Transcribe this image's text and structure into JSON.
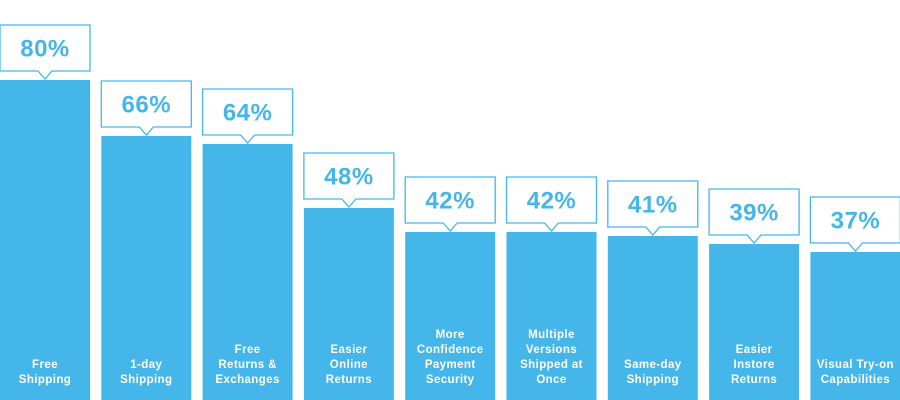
{
  "colors": {
    "bar": "#45b6e9",
    "callout_border": "#45b6e9",
    "callout_fill": "#ffffff",
    "value_text": "#45b6e9",
    "label_text": "#ffffff"
  },
  "chart_data": {
    "type": "bar",
    "categories": [
      "Free Shipping",
      "1-day Shipping",
      "Free Returns & Exchanges",
      "Easier Online Returns",
      "More Confidence Payment Security",
      "Multiple Versions Shipped at Once",
      "Same-day Shipping",
      "Easier Instore Returns",
      "Visual Try-on Capabilities"
    ],
    "category_lines": [
      [
        "Free",
        "Shipping"
      ],
      [
        "1-day",
        "Shipping"
      ],
      [
        "Free",
        "Returns &",
        "Exchanges"
      ],
      [
        "Easier",
        "Online",
        "Returns"
      ],
      [
        "More",
        "Confidence",
        "Payment",
        "Security"
      ],
      [
        "Multiple",
        "Versions",
        "Shipped at",
        "Once"
      ],
      [
        "Same-day",
        "Shipping"
      ],
      [
        "Easier",
        "Instore",
        "Returns"
      ],
      [
        "Visual Try-on",
        "Capabilities"
      ]
    ],
    "values": [
      80,
      66,
      64,
      48,
      42,
      42,
      41,
      39,
      37
    ],
    "value_labels": [
      "80%",
      "66%",
      "64%",
      "48%",
      "42%",
      "42%",
      "41%",
      "39%",
      "37%"
    ],
    "title": "",
    "xlabel": "",
    "ylabel": "",
    "ylim": [
      0,
      100
    ],
    "grid": false,
    "legend": "none"
  }
}
